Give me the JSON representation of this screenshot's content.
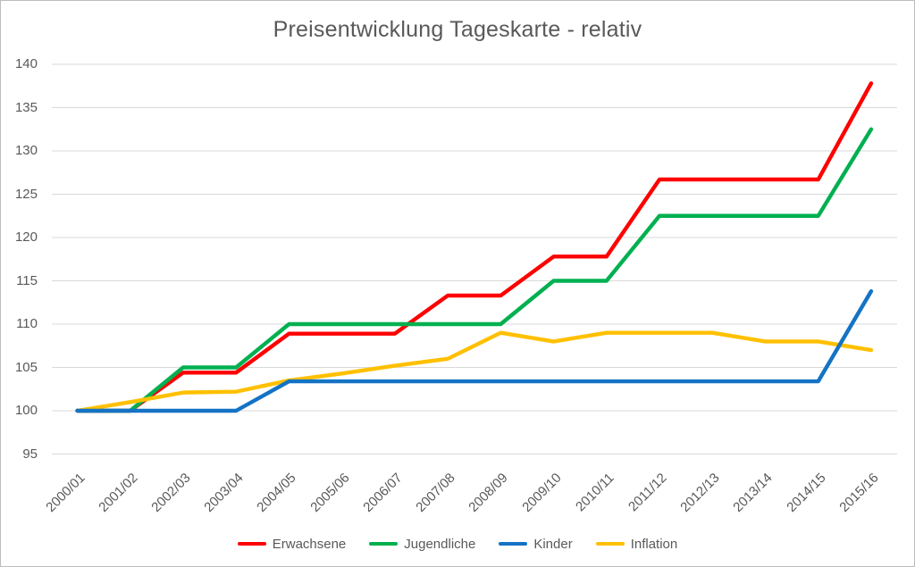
{
  "chart_data": {
    "type": "line",
    "title": "Preisentwicklung Tageskarte - relativ",
    "xlabel": "",
    "ylabel": "",
    "ylim": [
      95,
      140
    ],
    "ytick_step": 5,
    "grid": true,
    "legend_position": "bottom",
    "gridline_color": "#d9d9d9",
    "text_color": "#595959",
    "yticks": [
      "140",
      "135",
      "130",
      "125",
      "120",
      "115",
      "110",
      "105",
      "100",
      "95"
    ],
    "categories": [
      "2000/01",
      "2001/02",
      "2002/03",
      "2003/04",
      "2004/05",
      "2005/06",
      "2006/07",
      "2007/08",
      "2008/09",
      "2009/10",
      "2010/11",
      "2011/12",
      "2012/13",
      "2013/14",
      "2014/15",
      "2015/16"
    ],
    "series": [
      {
        "name": "Erwachsene",
        "color": "#fe0000",
        "values": [
          100,
          100,
          104.4,
          104.4,
          108.9,
          108.9,
          108.9,
          113.3,
          113.3,
          117.8,
          117.8,
          126.7,
          126.7,
          126.7,
          126.7,
          137.8
        ]
      },
      {
        "name": "Jugendliche",
        "color": "#00b050",
        "values": [
          100,
          100,
          105,
          105,
          110,
          110,
          110,
          110,
          110,
          115,
          115,
          122.5,
          122.5,
          122.5,
          122.5,
          132.5
        ]
      },
      {
        "name": "Kinder",
        "color": "#1473c4",
        "values": [
          100,
          100,
          100,
          100,
          103.4,
          103.4,
          103.4,
          103.4,
          103.4,
          103.4,
          103.4,
          103.4,
          103.4,
          103.4,
          103.4,
          113.8
        ]
      },
      {
        "name": "Inflation",
        "color": "#ffc000",
        "values": [
          100,
          101,
          102.1,
          102.2,
          103.5,
          104.3,
          105.2,
          106,
          109,
          108,
          109,
          109,
          109,
          108,
          108,
          107
        ]
      }
    ]
  }
}
